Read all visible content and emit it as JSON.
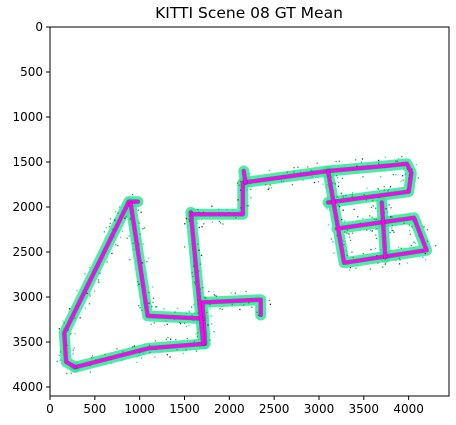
{
  "chart_data": {
    "type": "image",
    "title": "KITTI Scene 08 GT Mean",
    "xlabel": "",
    "ylabel": "",
    "xlim": [
      0,
      4450
    ],
    "ylim": [
      4100,
      0
    ],
    "y_inverted": true,
    "x_ticks": [
      0,
      500,
      1000,
      1500,
      2000,
      2500,
      3000,
      3500,
      4000
    ],
    "y_ticks": [
      0,
      500,
      1000,
      1500,
      2000,
      2500,
      3000,
      3500,
      4000
    ],
    "grid": false,
    "colors": {
      "trajectory": "#ff00ff",
      "map_points": "#33e69a",
      "map_points_dark": "#1faa2a",
      "edge_points": "#22bbee",
      "dark_points": "#333333"
    },
    "trajectory_segments": [
      {
        "points": [
          [
            280,
            3780
          ],
          [
            1100,
            3570
          ],
          [
            1730,
            3520
          ],
          [
            1700,
            3060
          ],
          [
            2350,
            3030
          ],
          [
            2350,
            3200
          ]
        ]
      },
      {
        "points": [
          [
            280,
            3780
          ],
          [
            180,
            3720
          ],
          [
            160,
            3400
          ],
          [
            880,
            1940
          ],
          [
            980,
            1940
          ]
        ]
      },
      {
        "points": [
          [
            900,
            1960
          ],
          [
            1090,
            3210
          ],
          [
            1710,
            3240
          ]
        ]
      },
      {
        "points": [
          [
            1570,
            2060
          ],
          [
            1710,
            3520
          ]
        ]
      },
      {
        "points": [
          [
            1590,
            2080
          ],
          [
            2150,
            2080
          ],
          [
            2150,
            1730
          ],
          [
            3100,
            1600
          ],
          [
            3780,
            1540
          ],
          [
            3980,
            1520
          ],
          [
            4030,
            1620
          ],
          [
            4000,
            1830
          ],
          [
            3100,
            1950
          ]
        ]
      },
      {
        "points": [
          [
            3100,
            1600
          ],
          [
            3280,
            2620
          ],
          [
            4200,
            2480
          ],
          [
            4060,
            2120
          ],
          [
            3200,
            2240
          ]
        ]
      },
      {
        "points": [
          [
            2160,
            1600
          ],
          [
            2180,
            1730
          ]
        ]
      },
      {
        "points": [
          [
            3700,
            1950
          ],
          [
            3740,
            2560
          ]
        ]
      }
    ]
  }
}
